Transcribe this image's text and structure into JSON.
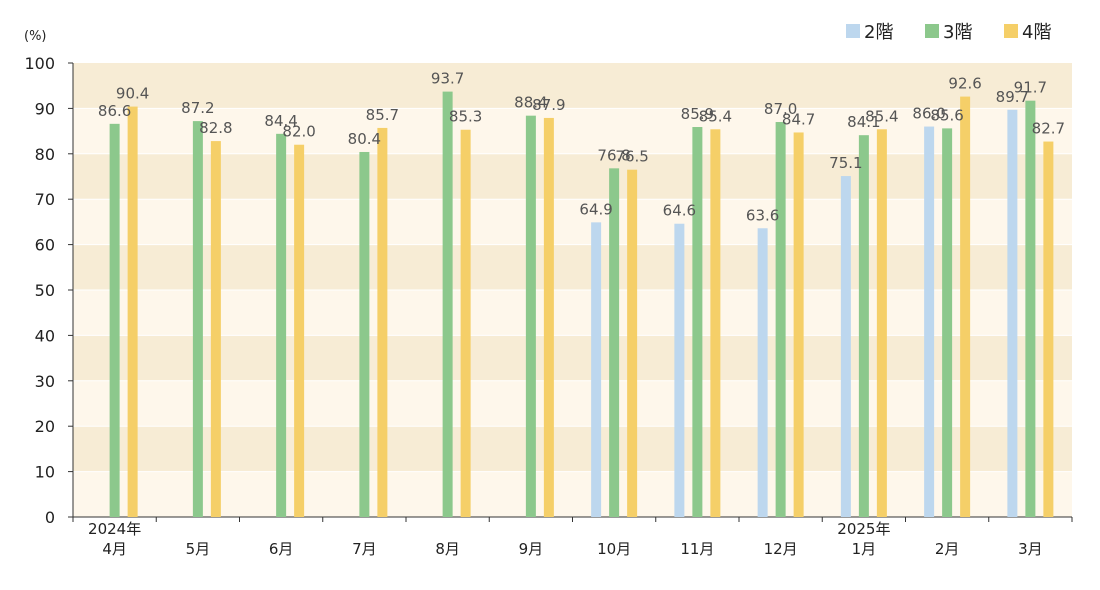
{
  "chart_data": {
    "type": "bar",
    "unit_label": "(%)",
    "ylim": [
      0,
      100
    ],
    "y_ticks": [
      "0",
      "10",
      "20",
      "30",
      "40",
      "50",
      "60",
      "70",
      "80",
      "90",
      "100"
    ],
    "categories": [
      {
        "top": "2024年",
        "bottom": "4月"
      },
      {
        "top": "",
        "bottom": "5月"
      },
      {
        "top": "",
        "bottom": "6月"
      },
      {
        "top": "",
        "bottom": "7月"
      },
      {
        "top": "",
        "bottom": "8月"
      },
      {
        "top": "",
        "bottom": "9月"
      },
      {
        "top": "",
        "bottom": "10月"
      },
      {
        "top": "",
        "bottom": "11月"
      },
      {
        "top": "",
        "bottom": "12月"
      },
      {
        "top": "2025年",
        "bottom": "1月"
      },
      {
        "top": "",
        "bottom": "2月"
      },
      {
        "top": "",
        "bottom": "3月"
      }
    ],
    "series": [
      {
        "name": "2階",
        "color": "#bdd7ee",
        "values": [
          null,
          null,
          null,
          null,
          null,
          null,
          64.9,
          64.6,
          63.6,
          75.1,
          86.0,
          89.7
        ]
      },
      {
        "name": "3階",
        "color": "#8cc88c",
        "values": [
          86.6,
          87.2,
          84.4,
          80.4,
          93.7,
          88.4,
          76.8,
          85.9,
          87.0,
          84.1,
          85.6,
          91.7
        ]
      },
      {
        "name": "4階",
        "color": "#f5cf68",
        "values": [
          90.4,
          82.8,
          82.0,
          85.7,
          85.3,
          87.9,
          76.5,
          85.4,
          84.7,
          85.4,
          92.6,
          82.7
        ]
      }
    ],
    "value_labels": [
      [
        null,
        null,
        null,
        null,
        null,
        null,
        "64.9",
        "64.6",
        "63.6",
        "75.1",
        "86.0",
        "89.7"
      ],
      [
        "86.6",
        "87.2",
        "84.4",
        "80.4",
        "93.7",
        "88.4",
        "76.8",
        "85.9",
        "87.0",
        "84.1",
        "85.6",
        "91.7"
      ],
      [
        "90.4",
        "82.8",
        "82.0",
        "85.7",
        "85.3",
        "87.9",
        "76.5",
        "85.4",
        "84.7",
        "85.4",
        "92.6",
        "82.7"
      ]
    ],
    "band_colors": [
      "#fef7eb",
      "#f7ecd5"
    ],
    "legend_position": "top-right"
  }
}
